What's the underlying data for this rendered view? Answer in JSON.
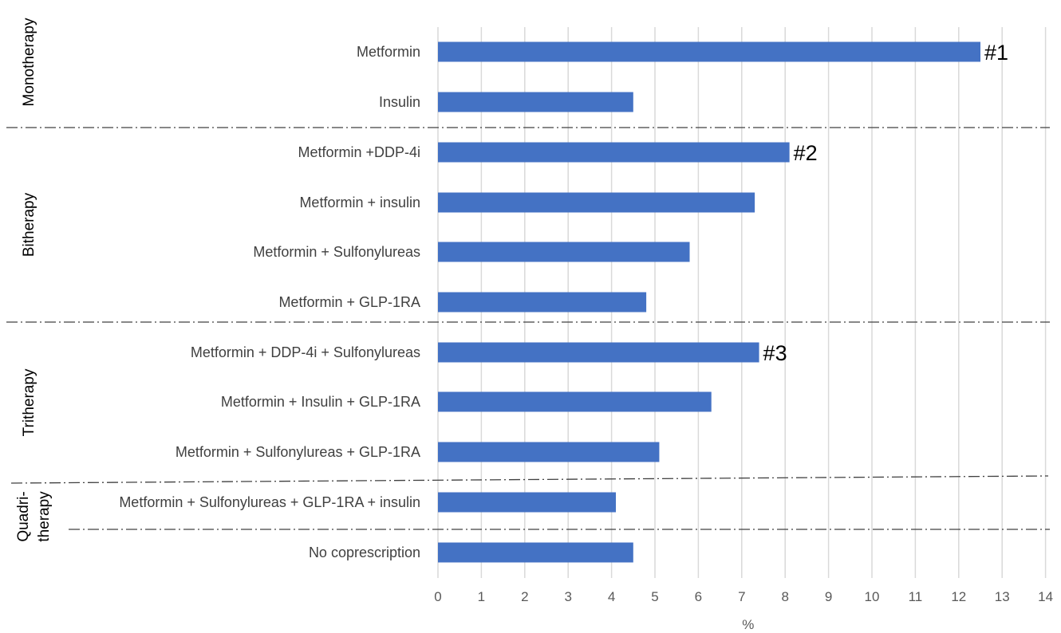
{
  "chart_data": {
    "type": "bar",
    "orientation": "horizontal",
    "xlabel": "%",
    "xlim": [
      0,
      14
    ],
    "xticks": [
      "0",
      "1",
      "2",
      "3",
      "4",
      "5",
      "6",
      "7",
      "8",
      "9",
      "10",
      "11",
      "12",
      "13",
      "14"
    ],
    "grid": true,
    "categories": [
      "Metformin",
      "Insulin",
      "Metformin +DDP-4i",
      "Metformin + insulin",
      "Metformin +  Sulfonylureas",
      "Metformin +  GLP-1RA",
      "Metformin + DDP-4i + Sulfonylureas",
      "Metformin + Insulin + GLP-1RA",
      "Metformin +  Sulfonylureas + GLP-1RA",
      "Metformin +  Sulfonylureas + GLP-1RA + insulin",
      "No coprescription"
    ],
    "values": [
      12.5,
      4.5,
      8.1,
      7.3,
      5.8,
      4.8,
      7.4,
      6.3,
      5.1,
      4.1,
      4.5
    ],
    "rank_annotations": [
      {
        "category_index": 0,
        "text": "#1"
      },
      {
        "category_index": 2,
        "text": "#2"
      },
      {
        "category_index": 6,
        "text": "#3"
      }
    ],
    "groups": [
      {
        "label_lines": [
          "Monotherapy"
        ]
      },
      {
        "label_lines": [
          "Bitherapy"
        ]
      },
      {
        "label_lines": [
          "Tritherapy"
        ]
      },
      {
        "label_lines": [
          "Quadri-",
          "therapy"
        ]
      }
    ],
    "bar_color": "#4472c4"
  }
}
